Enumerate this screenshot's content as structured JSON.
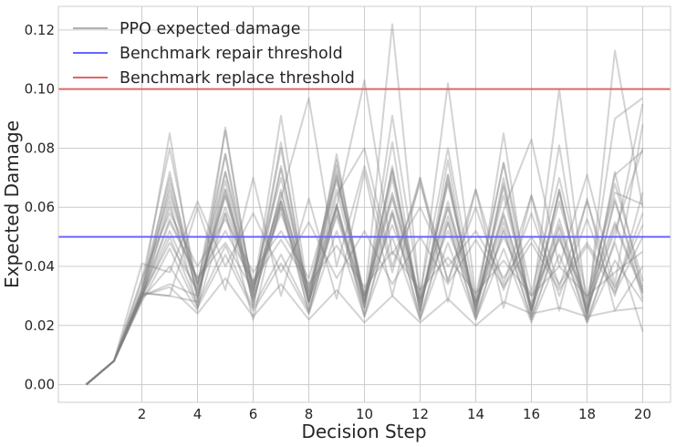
{
  "chart_data": {
    "type": "line",
    "title": "",
    "xlabel": "Decision Step",
    "ylabel": "Expected Damage",
    "xlim": [
      -1,
      21
    ],
    "ylim": [
      -0.006,
      0.128
    ],
    "xticks": [
      2,
      4,
      6,
      8,
      10,
      12,
      14,
      16,
      18,
      20
    ],
    "xtick_labels": [
      "2",
      "4",
      "6",
      "8",
      "10",
      "12",
      "14",
      "16",
      "18",
      "20"
    ],
    "yticks": [
      0.0,
      0.02,
      0.04,
      0.06,
      0.08,
      0.1,
      0.12
    ],
    "ytick_labels": [
      "0.00",
      "0.02",
      "0.04",
      "0.06",
      "0.08",
      "0.10",
      "0.12"
    ],
    "grid": true,
    "legend_position": "top-left",
    "legend": [
      {
        "label": "PPO expected damage",
        "color": "#a9a9a9"
      },
      {
        "label": "Benchmark repair threshold",
        "color": "#6666ff"
      },
      {
        "label": "Benchmark replace threshold",
        "color": "#e06666"
      }
    ],
    "hlines": [
      {
        "name": "Benchmark repair threshold",
        "y": 0.05,
        "color": "#6666ff"
      },
      {
        "name": "Benchmark replace threshold",
        "y": 0.1,
        "color": "#e06666"
      }
    ],
    "series_color": "#808080",
    "series_opacity": 0.35,
    "series": [
      {
        "values": [
          0.0,
          0.008,
          0.031,
          0.085,
          0.028,
          0.078,
          0.026,
          0.074,
          0.027,
          0.072,
          0.026,
          0.07,
          0.025,
          0.069,
          0.025,
          0.067,
          0.025,
          0.066,
          0.024,
          0.072,
          0.031
        ]
      },
      {
        "values": [
          0.0,
          0.008,
          0.03,
          0.056,
          0.036,
          0.048,
          0.032,
          0.06,
          0.025,
          0.058,
          0.03,
          0.054,
          0.029,
          0.052,
          0.028,
          0.05,
          0.03,
          0.049,
          0.029,
          0.055,
          0.032
        ]
      },
      {
        "values": [
          0.0,
          0.008,
          0.029,
          0.068,
          0.03,
          0.066,
          0.028,
          0.062,
          0.028,
          0.06,
          0.027,
          0.082,
          0.024,
          0.076,
          0.023,
          0.07,
          0.023,
          0.066,
          0.023,
          0.063,
          0.029
        ]
      },
      {
        "values": [
          0.0,
          0.008,
          0.032,
          0.064,
          0.034,
          0.06,
          0.033,
          0.058,
          0.032,
          0.074,
          0.03,
          0.072,
          0.028,
          0.068,
          0.027,
          0.064,
          0.026,
          0.062,
          0.027,
          0.068,
          0.035
        ]
      },
      {
        "values": [
          0.0,
          0.008,
          0.035,
          0.08,
          0.033,
          0.086,
          0.03,
          0.08,
          0.028,
          0.076,
          0.028,
          0.073,
          0.025,
          0.071,
          0.025,
          0.068,
          0.025,
          0.065,
          0.024,
          0.062,
          0.033
        ]
      },
      {
        "values": [
          0.0,
          0.008,
          0.028,
          0.046,
          0.026,
          0.044,
          0.025,
          0.041,
          0.024,
          0.052,
          0.023,
          0.05,
          0.022,
          0.048,
          0.022,
          0.046,
          0.021,
          0.044,
          0.021,
          0.042,
          0.028
        ]
      },
      {
        "values": [
          0.0,
          0.008,
          0.041,
          0.038,
          0.062,
          0.04,
          0.058,
          0.038,
          0.055,
          0.036,
          0.052,
          0.034,
          0.05,
          0.034,
          0.049,
          0.033,
          0.048,
          0.032,
          0.047,
          0.031,
          0.05
        ]
      },
      {
        "values": [
          0.0,
          0.008,
          0.03,
          0.072,
          0.029,
          0.069,
          0.027,
          0.066,
          0.028,
          0.064,
          0.08,
          0.04,
          0.068,
          0.035,
          0.06,
          0.032,
          0.058,
          0.03,
          0.056,
          0.03,
          0.065
        ]
      },
      {
        "values": [
          0.0,
          0.008,
          0.036,
          0.058,
          0.04,
          0.056,
          0.038,
          0.052,
          0.036,
          0.07,
          0.03,
          0.064,
          0.029,
          0.06,
          0.028,
          0.057,
          0.027,
          0.054,
          0.026,
          0.052,
          0.08
        ]
      },
      {
        "values": [
          0.0,
          0.008,
          0.029,
          0.062,
          0.026,
          0.058,
          0.022,
          0.062,
          0.024,
          0.06,
          0.023,
          0.058,
          0.022,
          0.055,
          0.022,
          0.053,
          0.022,
          0.051,
          0.021,
          0.049,
          0.095
        ]
      },
      {
        "values": [
          0.0,
          0.008,
          0.031,
          0.03,
          0.06,
          0.032,
          0.07,
          0.03,
          0.063,
          0.029,
          0.072,
          0.03,
          0.07,
          0.028,
          0.066,
          0.026,
          0.064,
          0.025,
          0.063,
          0.025,
          0.04
        ]
      },
      {
        "values": [
          0.0,
          0.008,
          0.033,
          0.07,
          0.034,
          0.072,
          0.034,
          0.07,
          0.03,
          0.071,
          0.028,
          0.122,
          0.029,
          0.102,
          0.03,
          0.075,
          0.031,
          0.07,
          0.03,
          0.065,
          0.061
        ]
      },
      {
        "values": [
          0.0,
          0.008,
          0.03,
          0.052,
          0.031,
          0.058,
          0.031,
          0.091,
          0.03,
          0.066,
          0.028,
          0.063,
          0.027,
          0.06,
          0.026,
          0.058,
          0.025,
          0.056,
          0.025,
          0.054,
          0.031
        ]
      },
      {
        "values": [
          0.0,
          0.008,
          0.03,
          0.048,
          0.032,
          0.064,
          0.034,
          0.062,
          0.033,
          0.06,
          0.103,
          0.044,
          0.06,
          0.04,
          0.052,
          0.036,
          0.05,
          0.034,
          0.048,
          0.033,
          0.054
        ]
      },
      {
        "values": [
          0.0,
          0.008,
          0.031,
          0.06,
          0.032,
          0.066,
          0.032,
          0.063,
          0.097,
          0.04,
          0.074,
          0.038,
          0.07,
          0.035,
          0.066,
          0.034,
          0.064,
          0.033,
          0.062,
          0.032,
          0.058
        ]
      },
      {
        "values": [
          0.0,
          0.008,
          0.029,
          0.04,
          0.025,
          0.087,
          0.03,
          0.082,
          0.028,
          0.078,
          0.026,
          0.074,
          0.025,
          0.071,
          0.024,
          0.085,
          0.023,
          0.081,
          0.022,
          0.113,
          0.06
        ]
      },
      {
        "values": [
          0.0,
          0.008,
          0.03,
          0.034,
          0.03,
          0.064,
          0.029,
          0.06,
          0.028,
          0.057,
          0.026,
          0.091,
          0.031,
          0.08,
          0.028,
          0.075,
          0.025,
          0.1,
          0.026,
          0.09,
          0.097
        ]
      },
      {
        "values": [
          0.0,
          0.008,
          0.032,
          0.066,
          0.034,
          0.078,
          0.033,
          0.073,
          0.031,
          0.069,
          0.03,
          0.065,
          0.028,
          0.062,
          0.027,
          0.059,
          0.083,
          0.04,
          0.071,
          0.034,
          0.088
        ]
      },
      {
        "values": [
          0.0,
          0.008,
          0.031,
          0.03,
          0.028,
          0.072,
          0.029,
          0.065,
          0.028,
          0.061,
          0.028,
          0.059,
          0.027,
          0.057,
          0.026,
          0.055,
          0.025,
          0.053,
          0.024,
          0.071,
          0.079
        ]
      },
      {
        "values": [
          0.0,
          0.008,
          0.03,
          0.055,
          0.036,
          0.052,
          0.035,
          0.049,
          0.034,
          0.047,
          0.033,
          0.045,
          0.032,
          0.043,
          0.031,
          0.042,
          0.03,
          0.04,
          0.03,
          0.038,
          0.045
        ]
      },
      {
        "values": [
          0.0,
          0.008,
          0.029,
          0.05,
          0.027,
          0.047,
          0.026,
          0.044,
          0.025,
          0.061,
          0.024,
          0.058,
          0.023,
          0.055,
          0.023,
          0.052,
          0.022,
          0.05,
          0.022,
          0.048,
          0.018
        ]
      },
      {
        "values": [
          0.0,
          0.008,
          0.03,
          0.033,
          0.024,
          0.036,
          0.023,
          0.034,
          0.022,
          0.032,
          0.021,
          0.03,
          0.021,
          0.029,
          0.02,
          0.028,
          0.024,
          0.026,
          0.023,
          0.025,
          0.026
        ]
      }
    ]
  }
}
